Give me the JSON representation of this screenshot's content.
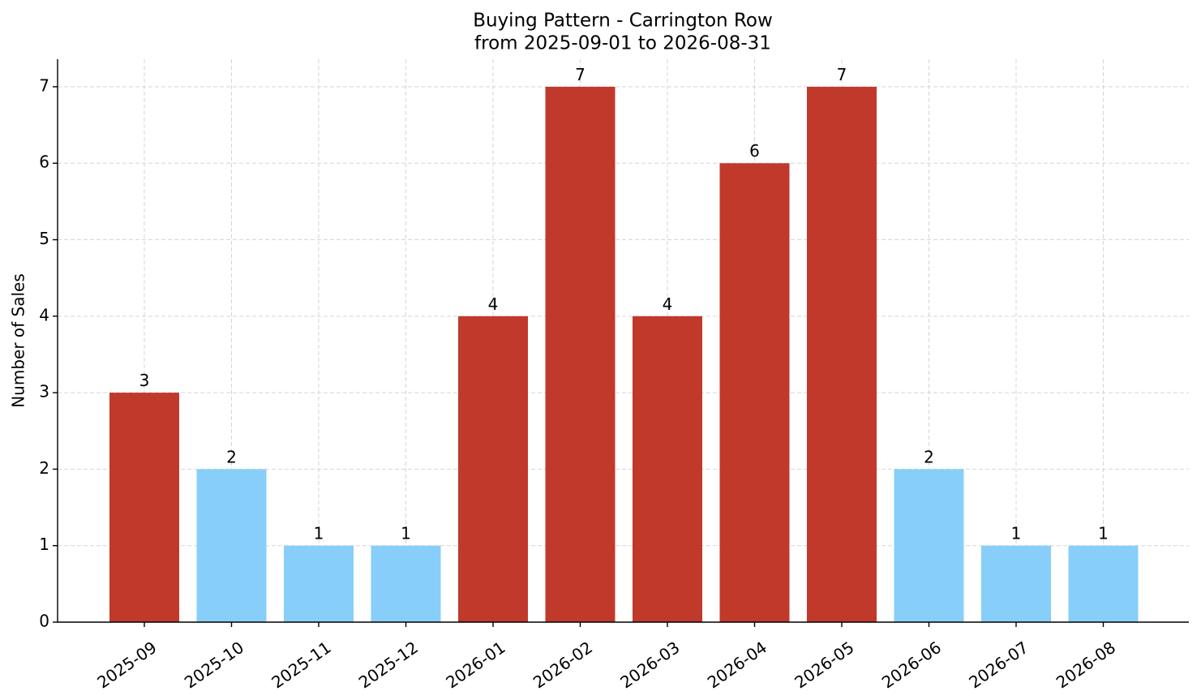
{
  "chart_data": {
    "type": "bar",
    "title": "Buying Pattern - Carrington Row",
    "subtitle": "from 2025-09-01 to 2026-08-31",
    "y_label": "Number of Sales",
    "categories": [
      "2025-09",
      "2025-10",
      "2025-11",
      "2025-12",
      "2026-01",
      "2026-02",
      "2026-03",
      "2026-04",
      "2026-05",
      "2026-06",
      "2026-07",
      "2026-08"
    ],
    "values": [
      3,
      2,
      1,
      1,
      4,
      7,
      4,
      6,
      7,
      2,
      1,
      1
    ],
    "colors": [
      "#c0392b",
      "#87cefa",
      "#87cefa",
      "#87cefa",
      "#c0392b",
      "#c0392b",
      "#c0392b",
      "#c0392b",
      "#c0392b",
      "#87cefa",
      "#87cefa",
      "#87cefa"
    ],
    "ylim": [
      0,
      7.36
    ],
    "yticks": [
      0,
      1,
      2,
      3,
      4,
      5,
      6,
      7
    ],
    "grid": true
  }
}
